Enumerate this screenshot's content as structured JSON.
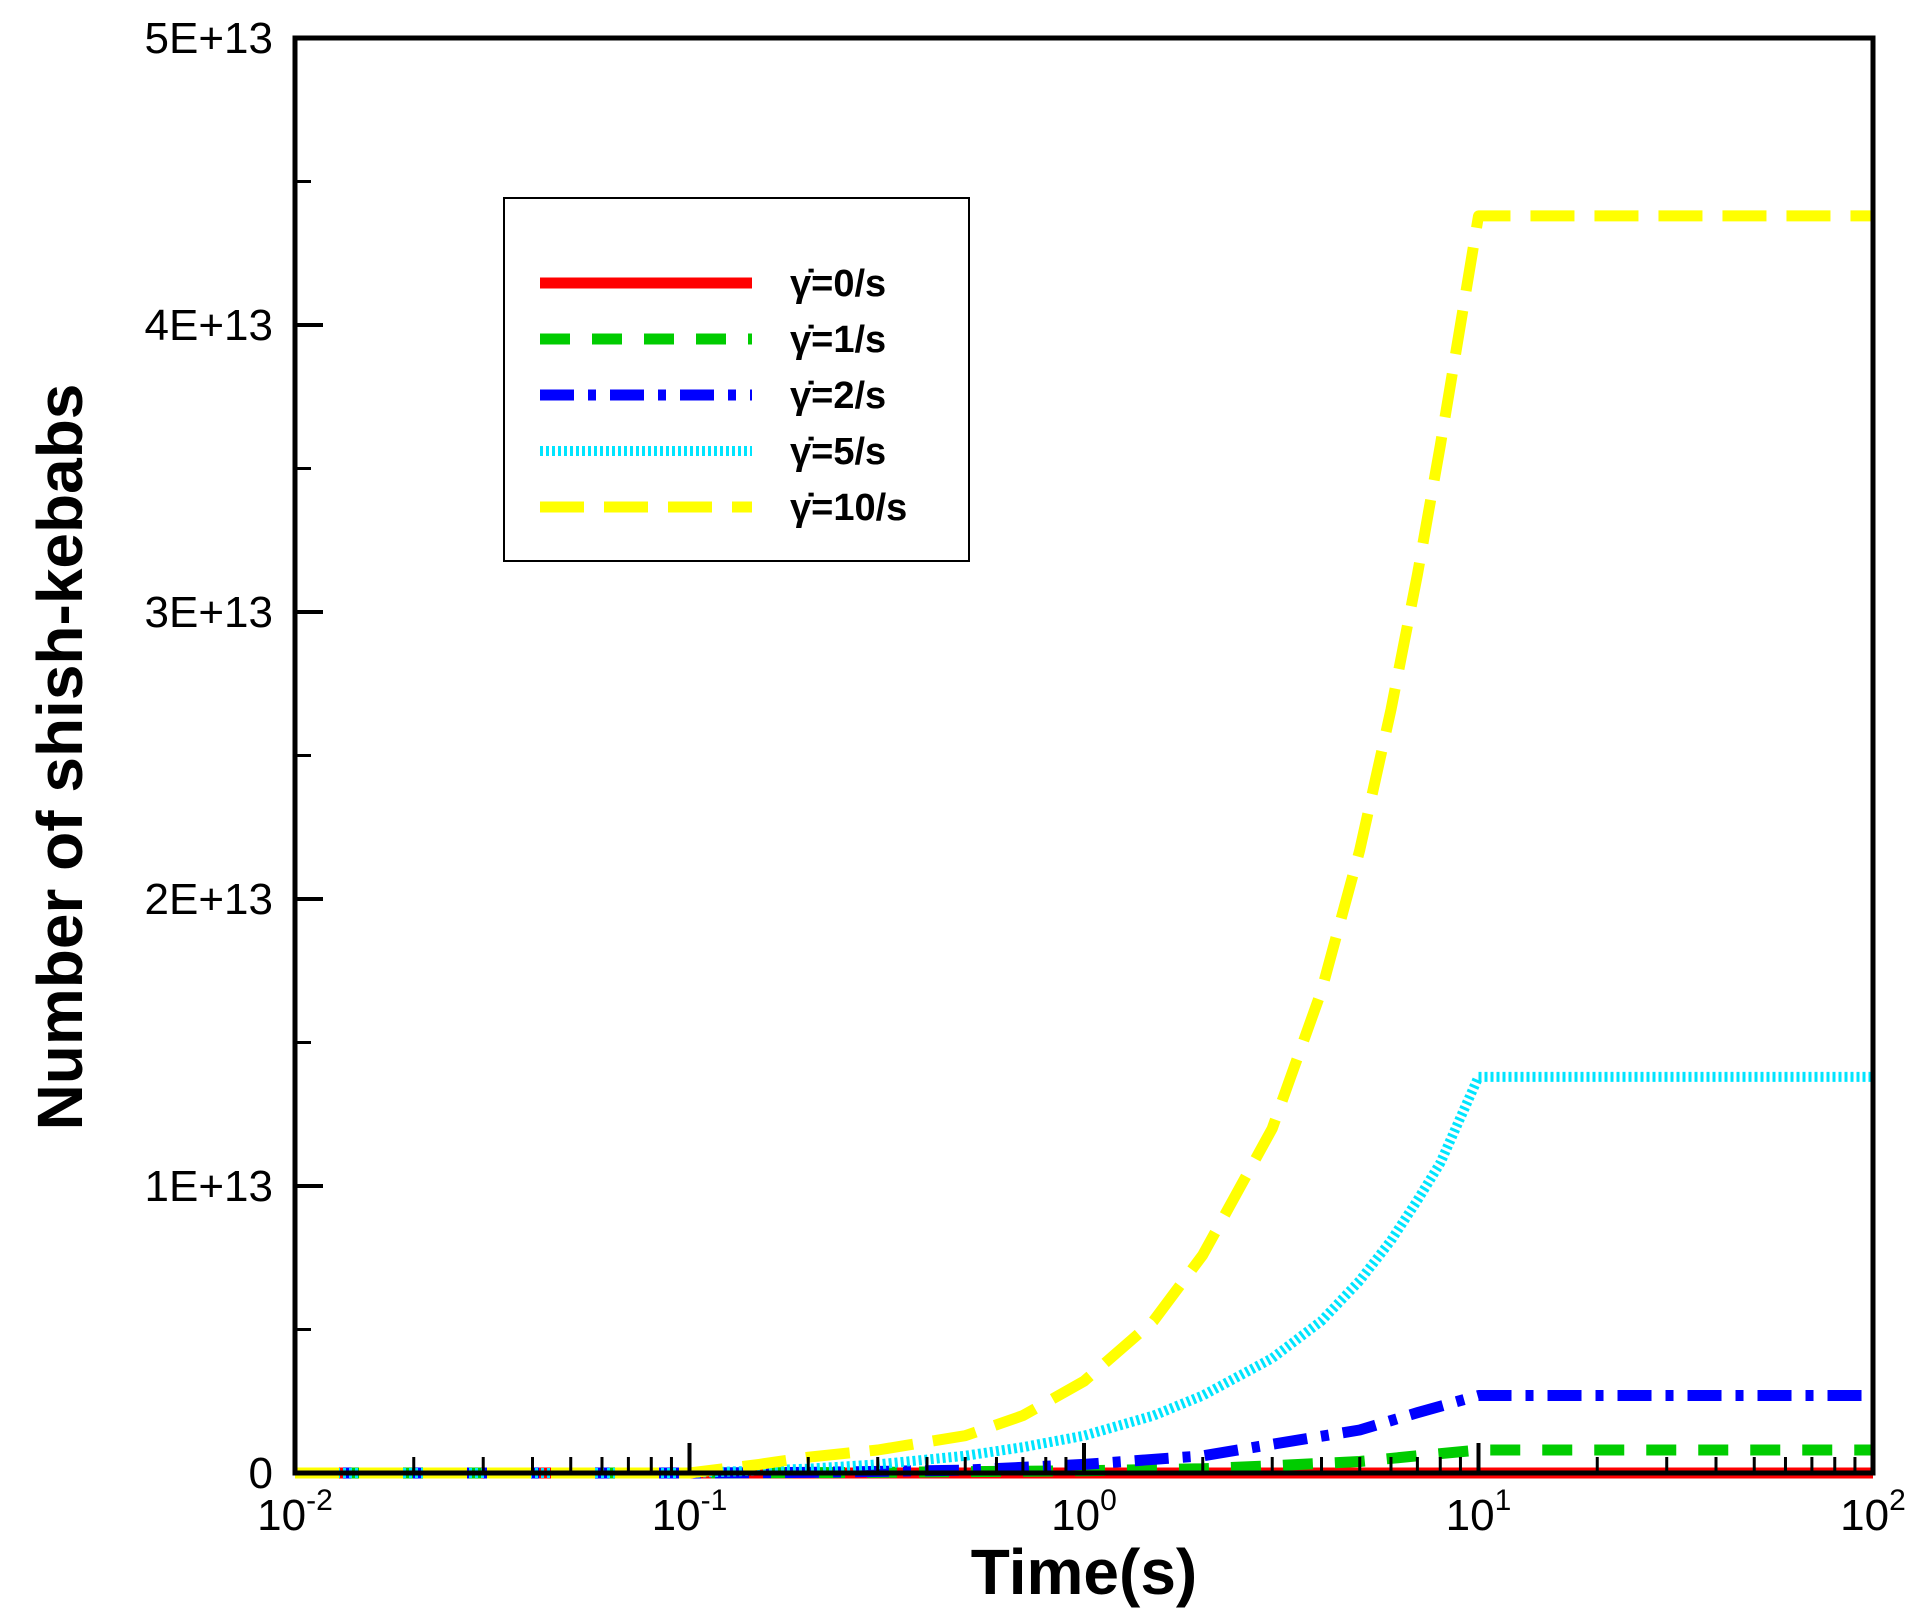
{
  "chart_data": {
    "type": "line",
    "title": "",
    "xlabel": "Time(s)",
    "ylabel": "Number of shish-kebabs",
    "xscale": "log",
    "xlim": [
      0.01,
      100
    ],
    "ylim": [
      0,
      50000000000000
    ],
    "grid": false,
    "legend_position": "top-left",
    "x_ticks": [
      {
        "value": 0.01,
        "base": "10",
        "exp": "-2"
      },
      {
        "value": 0.1,
        "base": "10",
        "exp": "-1"
      },
      {
        "value": 1,
        "base": "10",
        "exp": "0"
      },
      {
        "value": 10,
        "base": "10",
        "exp": "1"
      },
      {
        "value": 100,
        "base": "10",
        "exp": "2"
      }
    ],
    "y_ticks": [
      {
        "value": 0,
        "label": "0"
      },
      {
        "value": 10000000000000,
        "label": "1E+13"
      },
      {
        "value": 20000000000000,
        "label": "2E+13"
      },
      {
        "value": 30000000000000,
        "label": "3E+13"
      },
      {
        "value": 40000000000000,
        "label": "4E+13"
      },
      {
        "value": 50000000000000,
        "label": "5E+13"
      }
    ],
    "series": [
      {
        "name": "γ̇=0/s",
        "color": "#ff0000",
        "dash": "solid",
        "x": [
          0.01,
          0.1,
          1,
          10,
          100
        ],
        "y": [
          0,
          0,
          0,
          0,
          0
        ]
      },
      {
        "name": "γ̇=1/s",
        "color": "#00cc00",
        "dash": "dash",
        "x": [
          0.01,
          0.1,
          0.3,
          1,
          2,
          3,
          5,
          7,
          10,
          100
        ],
        "y": [
          0,
          0,
          20000000000,
          80000000000,
          150000000000,
          250000000000,
          400000000000,
          600000000000,
          800000000000,
          800000000000
        ]
      },
      {
        "name": "γ̇=2/s",
        "color": "#0000ff",
        "dash": "dashdot",
        "x": [
          0.01,
          0.1,
          0.2,
          0.5,
          1,
          2,
          3,
          5,
          7,
          10,
          100
        ],
        "y": [
          0,
          0,
          20000000000,
          100000000000,
          300000000000,
          600000000000,
          1000000000000,
          1500000000000,
          2100000000000,
          2700000000000,
          2700000000000
        ]
      },
      {
        "name": "γ̇=5/s",
        "color": "#00e5ff",
        "dash": "dotted",
        "x": [
          0.01,
          0.1,
          0.2,
          0.3,
          0.5,
          0.7,
          1,
          1.5,
          2,
          3,
          4,
          5,
          6,
          7,
          8,
          10,
          100
        ],
        "y": [
          0,
          0,
          150000000000,
          300000000000,
          600000000000,
          900000000000,
          1300000000000,
          2000000000000,
          2700000000000,
          4000000000000,
          5300000000000,
          6700000000000,
          8100000000000,
          9500000000000,
          10800000000000,
          13800000000000,
          13800000000000
        ]
      },
      {
        "name": "γ̇=10/s",
        "color": "#ffff00",
        "dash": "longdash",
        "x": [
          0.01,
          0.1,
          0.15,
          0.2,
          0.3,
          0.5,
          0.7,
          1,
          1.5,
          2,
          3,
          4,
          5,
          6,
          7,
          8,
          9,
          10,
          100
        ],
        "y": [
          0,
          0,
          300000000000,
          550000000000,
          800000000000,
          1300000000000,
          2000000000000,
          3200000000000,
          5300000000000,
          7600000000000,
          12000000000000,
          16800000000000,
          21700000000000,
          26600000000000,
          31300000000000,
          35800000000000,
          40000000000000,
          43800000000000,
          43800000000000
        ]
      }
    ]
  }
}
